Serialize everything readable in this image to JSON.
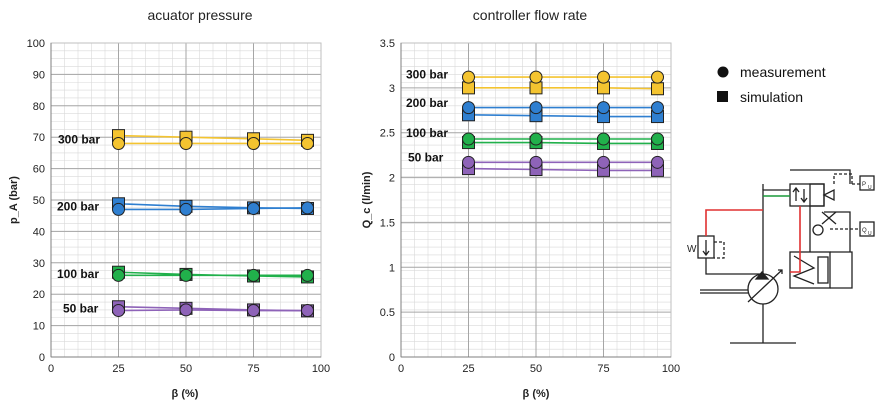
{
  "chart_data": [
    {
      "type": "line",
      "title": "acuator pressure",
      "xlabel": "β (%)",
      "ylabel": "p_A (bar)",
      "xlim": [
        0,
        100
      ],
      "ylim": [
        0,
        100
      ],
      "xticks": [
        0,
        25,
        50,
        75,
        100
      ],
      "yticks": [
        0,
        10,
        20,
        30,
        40,
        50,
        60,
        70,
        80,
        90,
        100
      ],
      "x": [
        25,
        50,
        75,
        95
      ],
      "series": [
        {
          "name": "300 bar",
          "color": "#f4c430",
          "measurement": [
            68,
            68,
            68,
            68
          ],
          "simulation": [
            70.5,
            70,
            69.5,
            69
          ]
        },
        {
          "name": "200 bar",
          "color": "#2f7fd0",
          "measurement": [
            47,
            47,
            47.3,
            47.5
          ],
          "simulation": [
            48.8,
            48,
            47.5,
            47.3
          ]
        },
        {
          "name": "100 bar",
          "color": "#21b04b",
          "measurement": [
            26,
            26,
            26,
            26
          ],
          "simulation": [
            27,
            26.3,
            25.8,
            25.5
          ]
        },
        {
          "name": "50 bar",
          "color": "#8e63b8",
          "measurement": [
            14.8,
            15,
            14.8,
            14.8
          ],
          "simulation": [
            16,
            15.5,
            15,
            14.7
          ]
        }
      ]
    },
    {
      "type": "line",
      "title": "controller flow rate",
      "xlabel": "β (%)",
      "ylabel": "Q_c (l/min)",
      "xlim": [
        0,
        100
      ],
      "ylim": [
        0,
        3.5
      ],
      "xticks": [
        0,
        25,
        50,
        75,
        100
      ],
      "yticks": [
        0,
        0.5,
        1,
        1.5,
        2,
        2.5,
        3,
        3.5
      ],
      "x": [
        25,
        50,
        75,
        95
      ],
      "series": [
        {
          "name": "300 bar",
          "color": "#f4c430",
          "measurement": [
            3.12,
            3.12,
            3.12,
            3.12
          ],
          "simulation": [
            3.0,
            3.0,
            3.0,
            2.99
          ]
        },
        {
          "name": "200 bar",
          "color": "#2f7fd0",
          "measurement": [
            2.78,
            2.78,
            2.78,
            2.78
          ],
          "simulation": [
            2.7,
            2.69,
            2.68,
            2.68
          ]
        },
        {
          "name": "100 bar",
          "color": "#21b04b",
          "measurement": [
            2.43,
            2.43,
            2.43,
            2.43
          ],
          "simulation": [
            2.39,
            2.39,
            2.38,
            2.38
          ]
        },
        {
          "name": "50 bar",
          "color": "#8e63b8",
          "measurement": [
            2.17,
            2.17,
            2.17,
            2.17
          ],
          "simulation": [
            2.1,
            2.09,
            2.08,
            2.08
          ]
        }
      ]
    }
  ],
  "legend": {
    "measurement": "measurement",
    "simulation": "simulation"
  },
  "schematic": {
    "labels": [
      "W",
      "P",
      "U",
      "Q",
      "U"
    ]
  }
}
